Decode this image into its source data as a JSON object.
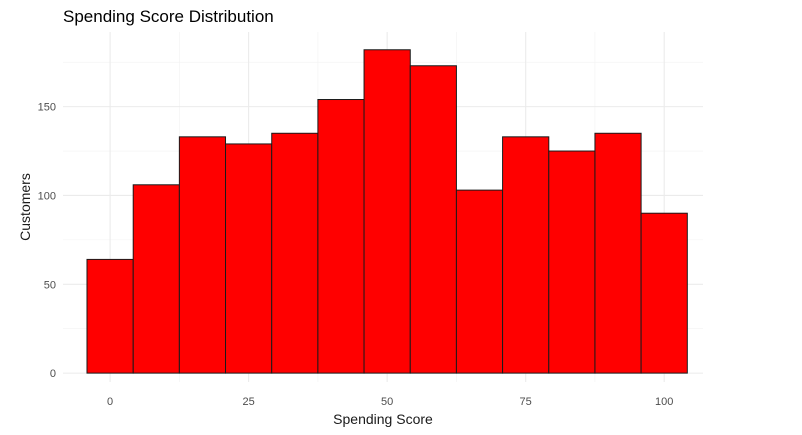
{
  "chart_data": {
    "type": "bar",
    "title": "Spending Score Distribution",
    "xlabel": "Spending Score",
    "ylabel": "Customers",
    "bin_edges": [
      -4.17,
      4.17,
      12.5,
      20.83,
      29.17,
      37.5,
      45.83,
      54.17,
      62.5,
      70.83,
      79.17,
      87.5,
      95.83,
      104.17
    ],
    "values": [
      64,
      106,
      133,
      129,
      135,
      154,
      182,
      173,
      103,
      133,
      125,
      135,
      90
    ],
    "xlim": [
      -8.5,
      107
    ],
    "ylim": [
      -5,
      192
    ],
    "xticks": [
      0,
      25,
      50,
      75,
      100
    ],
    "xtick_labels": [
      "0",
      "25",
      "50",
      "75",
      "100"
    ],
    "yticks": [
      0,
      50,
      100,
      150
    ],
    "ytick_labels": [
      "0",
      "50",
      "100",
      "150"
    ],
    "grid": true,
    "colors": {
      "fill": "#ff0000",
      "outline": "#1a1a1a",
      "grid_major": "#ebebeb",
      "grid_minor": "#f2f2f2"
    }
  }
}
